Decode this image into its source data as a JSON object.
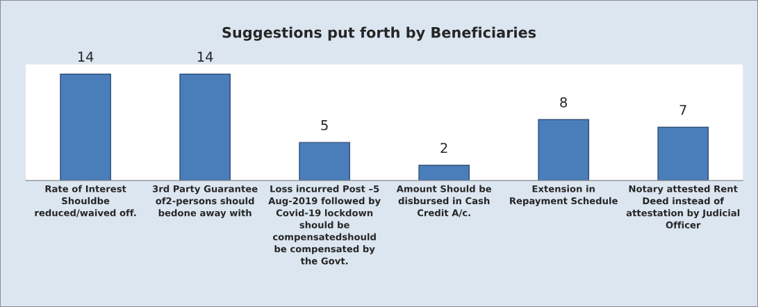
{
  "chart_data": {
    "type": "bar",
    "title": "Suggestions put forth by Beneficiaries",
    "categories": [
      "Rate of Interest\nShouldbe\nreduced/waived off.",
      "3rd Party Guarantee\nof2-persons should\nbedone away with",
      "Loss incurred Post –5\nAug-2019 followed by\nCovid-19 lockdown\nshould be\ncompensatedshould\nbe compensated by\nthe Govt.",
      "Amount Should be\ndisbursed in Cash\nCredit A/c.",
      "Extension in\nRepayment Schedule",
      "Notary attested Rent\nDeed instead of\nattestation by Judicial\nOfficer"
    ],
    "values": [
      14,
      14,
      5,
      2,
      8,
      7
    ],
    "color": "#4a7ebb",
    "data_labels": true,
    "grid": false,
    "legend": false
  }
}
